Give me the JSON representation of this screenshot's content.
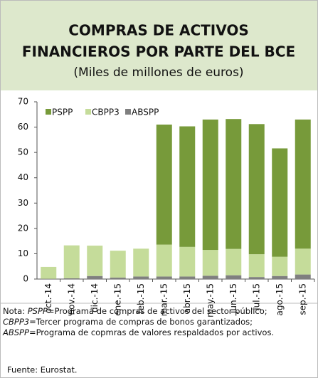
{
  "chart_data": {
    "type": "stacked_bar",
    "title": [
      "COMPRAS DE ACTIVOS",
      "FINANCIEROS POR PARTE DEL BCE"
    ],
    "subtitle": "(Miles de millones de euros)",
    "categories": [
      "oct.-14",
      "nov.-14",
      "dic.-14",
      "ene.-15",
      "feb.-15",
      "mar.-15",
      "abr.-15",
      "may.-15",
      "jun.-15",
      "jul.-15",
      "ago.-15",
      "sep.-15"
    ],
    "series": [
      {
        "name": "PSPP",
        "color": "#779a3a",
        "values": [
          0,
          0,
          0,
          0,
          0,
          47.4,
          47.6,
          51.5,
          51.3,
          51.4,
          42.8,
          51.0
        ]
      },
      {
        "name": "CBPP3",
        "color": "#c5dc9a",
        "values": [
          4.7,
          13.0,
          12.0,
          10.6,
          11.0,
          12.6,
          11.7,
          10.2,
          10.4,
          9.0,
          7.6,
          10.2
        ]
      },
      {
        "name": "ABSPP",
        "color": "#7f7f7f",
        "values": [
          0.1,
          0.3,
          1.2,
          0.6,
          1.0,
          1.0,
          1.0,
          1.3,
          1.5,
          0.8,
          1.2,
          1.8
        ]
      }
    ],
    "ylim": [
      0,
      70
    ],
    "yticks": [
      0,
      10,
      20,
      30,
      40,
      50,
      60,
      70
    ],
    "grid": false,
    "legend": "top-left",
    "notes": {
      "label": "Nota:",
      "items": [
        {
          "term": "PSPP",
          "text": "=Programa de compras de activos del sector público;"
        },
        {
          "term": "CBPP3",
          "text": "=Tercer programa de compras de bonos garantizados;"
        },
        {
          "term": "ABSPP",
          "text": "=Programa de copmras de valores respaldados por activos."
        }
      ]
    },
    "source": "Fuente:  Eurostat."
  }
}
